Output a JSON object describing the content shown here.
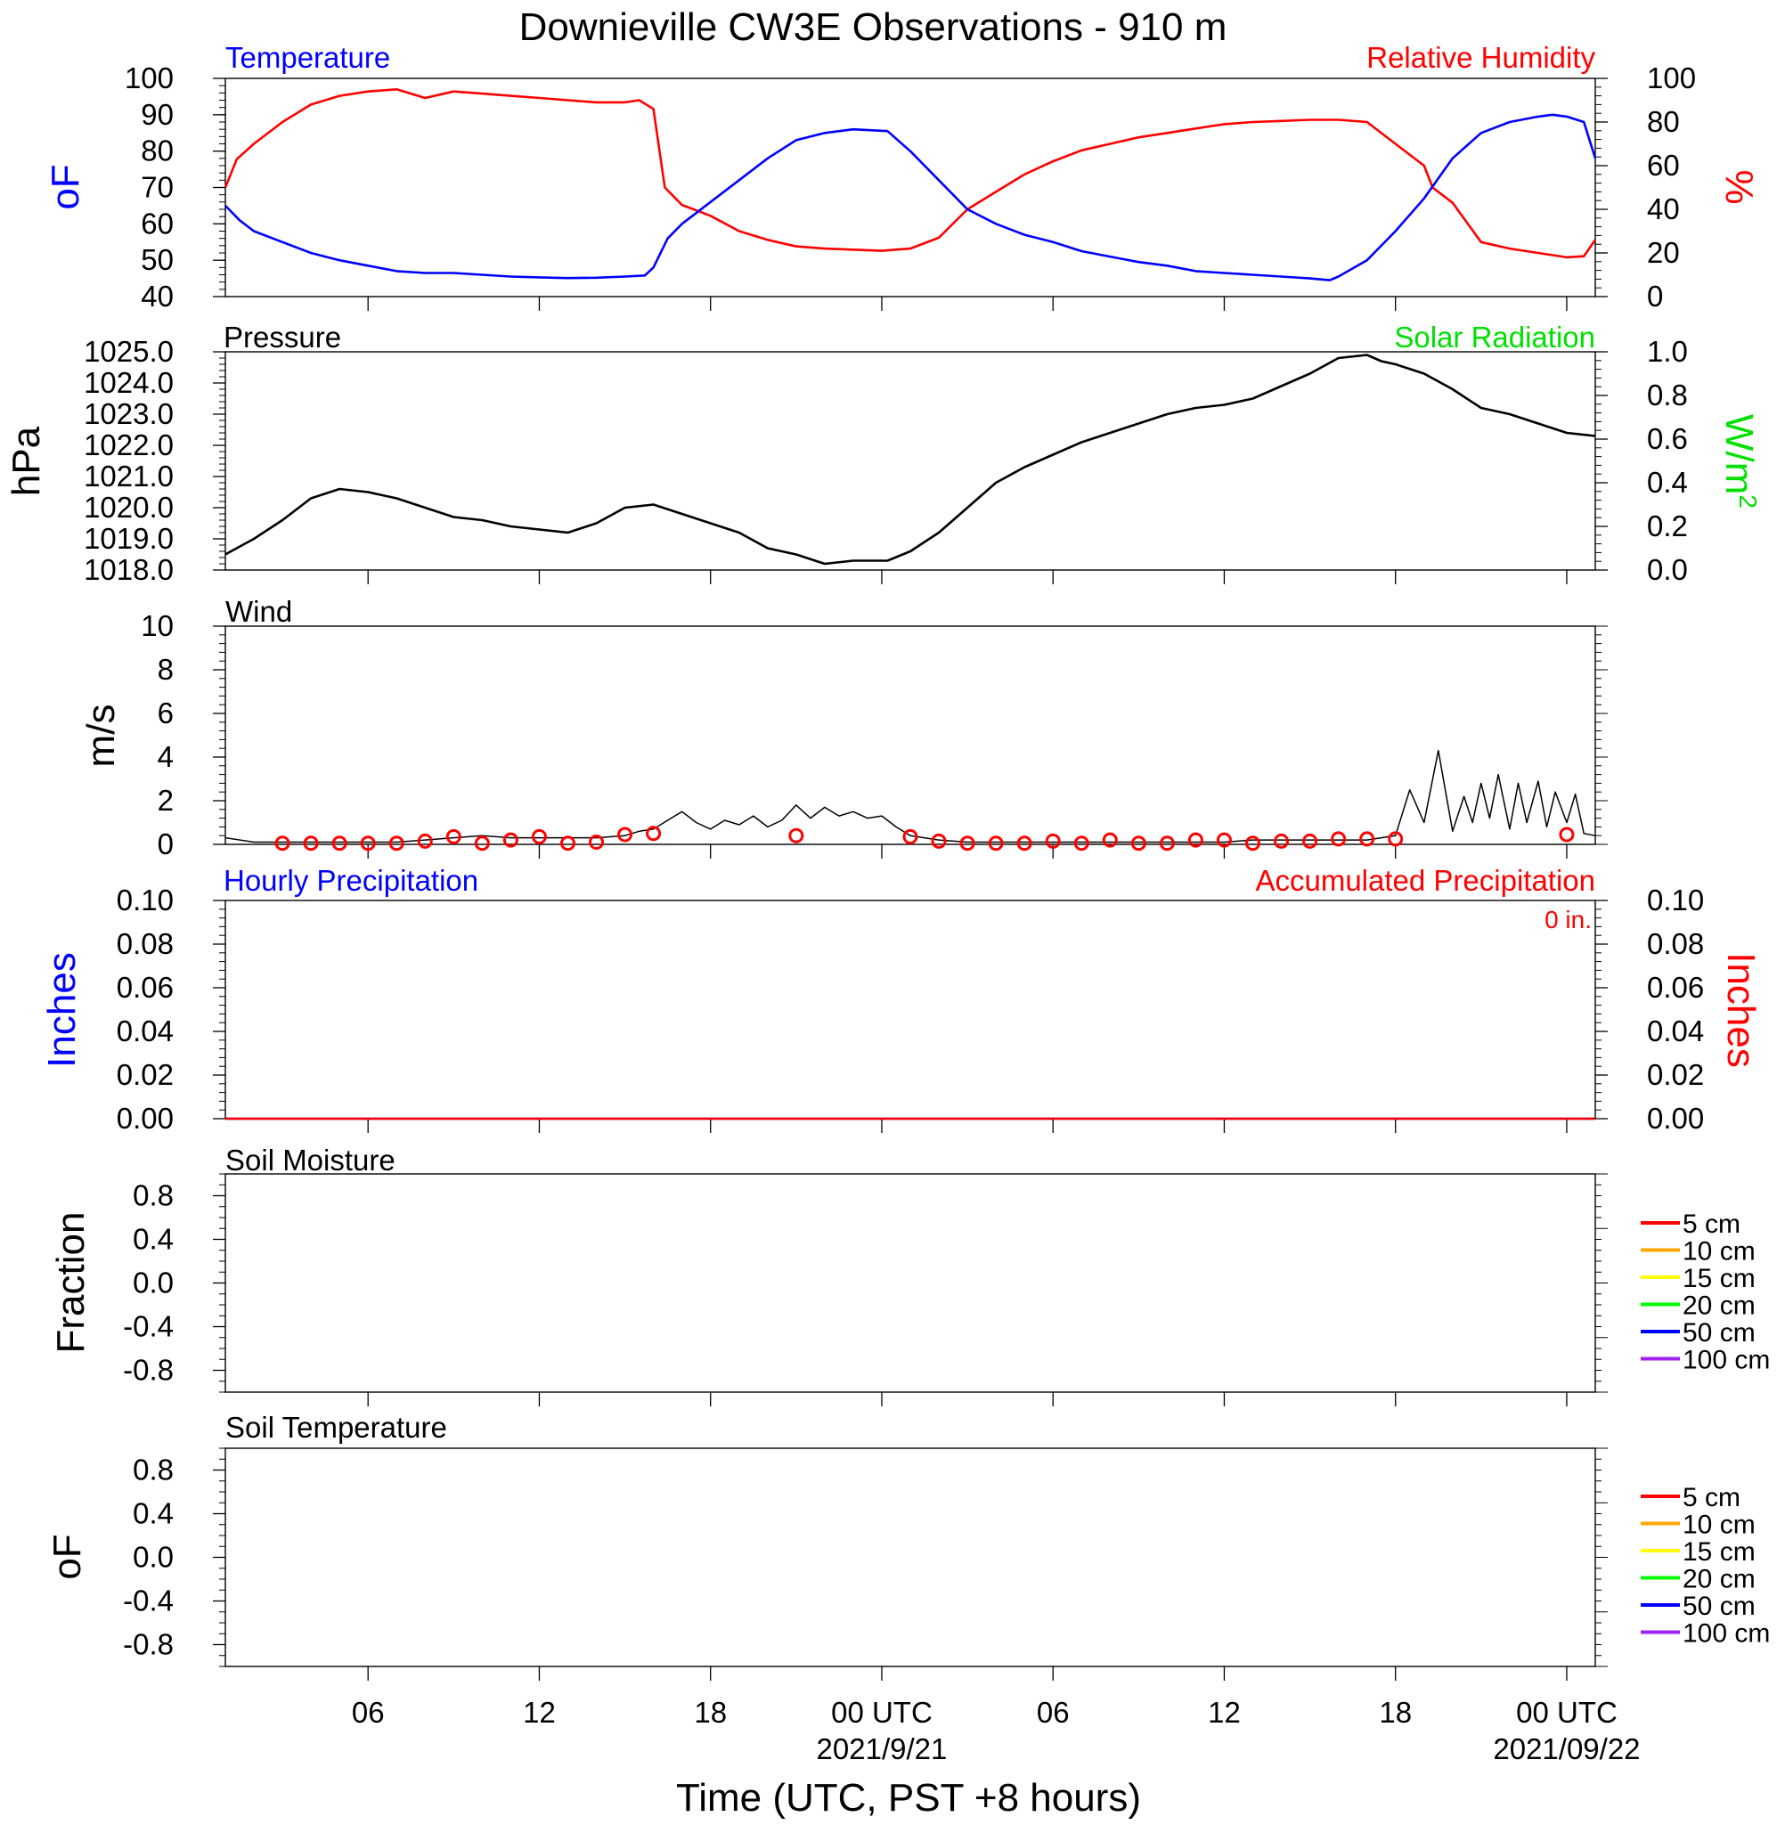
{
  "title": "Downieville CW3E Observations - 910 m",
  "xlabel": "Time (UTC, PST +8 hours)",
  "colors": {
    "temperature": "#0000ff",
    "humidity": "#ff0000",
    "pressure": "#000000",
    "solar": "#00e000",
    "wind": "#000000",
    "gust": "#ff0000",
    "hourly_precip": "#0000ff",
    "accum_precip": "#ff0000"
  },
  "x_ticks": [
    {
      "label": "06",
      "date": ""
    },
    {
      "label": "12",
      "date": ""
    },
    {
      "label": "18",
      "date": ""
    },
    {
      "label": "00 UTC",
      "date": "2021/9/21"
    },
    {
      "label": "06",
      "date": ""
    },
    {
      "label": "12",
      "date": ""
    },
    {
      "label": "18",
      "date": ""
    },
    {
      "label": "00 UTC",
      "date": "2021/09/22"
    }
  ],
  "panels": {
    "temp_rh": {
      "left_title": "Temperature",
      "right_title": "Relative Humidity",
      "left_unit": "oF",
      "right_unit": "%",
      "left_ticks": [
        "100",
        "90",
        "80",
        "70",
        "60",
        "50",
        "40"
      ],
      "right_ticks": [
        "100",
        "80",
        "60",
        "40",
        "20",
        "0"
      ]
    },
    "pressure": {
      "left_title": "Pressure",
      "right_title": "Solar Radiation",
      "left_unit": "hPa",
      "right_unit": "W/m2",
      "left_ticks": [
        "1025.0",
        "1024.0",
        "1023.0",
        "1022.0",
        "1021.0",
        "1020.0",
        "1019.0",
        "1018.0"
      ],
      "right_ticks": [
        "1.0",
        "0.8",
        "0.6",
        "0.4",
        "0.2",
        "0.0"
      ]
    },
    "wind": {
      "left_title": "Wind",
      "left_unit": "m/s",
      "left_ticks": [
        "10",
        "8",
        "6",
        "4",
        "2",
        "0"
      ]
    },
    "precip": {
      "left_title": "Hourly Precipitation",
      "right_title": "Accumulated Precipitation",
      "total_label": "0 in.",
      "left_unit": "Inches",
      "right_unit": "Inches",
      "left_ticks": [
        "0.10",
        "0.08",
        "0.06",
        "0.04",
        "0.02",
        "0.00"
      ],
      "right_ticks": [
        "0.10",
        "0.08",
        "0.06",
        "0.04",
        "0.02",
        "0.00"
      ]
    },
    "soil_moisture": {
      "left_title": "Soil Moisture",
      "left_unit": "Fraction",
      "left_ticks": [
        "0.8",
        "0.4",
        "0.0",
        "-0.4",
        "-0.8"
      ]
    },
    "soil_temp": {
      "left_title": "Soil Temperature",
      "left_unit": "oF",
      "left_ticks": [
        "0.8",
        "0.4",
        "0.0",
        "-0.4",
        "-0.8"
      ]
    }
  },
  "soil_legend": [
    {
      "label": "5 cm",
      "color": "#ff0000"
    },
    {
      "label": "10 cm",
      "color": "#ffa500"
    },
    {
      "label": "15 cm",
      "color": "#ffff00"
    },
    {
      "label": "20 cm",
      "color": "#00ff00"
    },
    {
      "label": "50 cm",
      "color": "#0000ff"
    },
    {
      "label": "100 cm",
      "color": "#a020f0"
    }
  ],
  "chart_data": [
    {
      "type": "line",
      "title": "Temperature / Relative Humidity",
      "x_unit": "hours since 2021-09-20 00 UTC",
      "xlim": [
        1,
        49
      ],
      "series": [
        {
          "name": "Temperature",
          "axis": "left",
          "ylim": [
            40,
            100
          ],
          "x": [
            1,
            1.5,
            2,
            3,
            4,
            5,
            6,
            7,
            8,
            9,
            10,
            11,
            12,
            13,
            14,
            15,
            15.7,
            16,
            16.5,
            17,
            18,
            19,
            20,
            21,
            22,
            23,
            24.2,
            25,
            26,
            27,
            28,
            29,
            30,
            31,
            32,
            33,
            34,
            35,
            36,
            37,
            38,
            39,
            39.7,
            40,
            41,
            42,
            43,
            44,
            45,
            46,
            47,
            47.5,
            48,
            48.6,
            49
          ],
          "values": [
            65,
            61,
            58,
            55,
            52,
            50,
            48.5,
            47,
            46.5,
            46.5,
            46,
            45.5,
            45.3,
            45.1,
            45.2,
            45.5,
            45.8,
            48,
            56,
            60,
            66,
            72,
            78,
            83,
            85,
            86,
            85.5,
            80,
            72,
            64,
            60,
            57,
            55,
            52.5,
            51,
            49.5,
            48.5,
            47,
            46.5,
            46,
            45.5,
            45,
            44.5,
            45.5,
            50,
            58,
            67,
            78,
            85,
            88,
            89.5,
            90,
            89.5,
            88,
            78
          ]
        },
        {
          "name": "Relative Humidity",
          "axis": "right",
          "ylim": [
            0,
            100
          ],
          "x": [
            1,
            1.4,
            2,
            3,
            4,
            5,
            6,
            7,
            8,
            9,
            10,
            11,
            12,
            13,
            14,
            15,
            15.5,
            16,
            16.4,
            17,
            18,
            19,
            20,
            21,
            22,
            23,
            24,
            25,
            26,
            27,
            28,
            29,
            30,
            31,
            32,
            33,
            34,
            35,
            36,
            37,
            38,
            39,
            40,
            41,
            42,
            43,
            43.3,
            44,
            45,
            46,
            47,
            48,
            48.6,
            49
          ],
          "values": [
            50,
            63,
            70,
            80,
            88,
            92,
            94,
            95,
            91,
            94,
            93,
            92,
            91,
            90,
            89,
            89,
            90,
            86,
            50,
            42,
            37,
            30,
            26,
            23,
            22,
            21.5,
            21,
            22,
            27,
            40,
            48,
            56,
            62,
            67,
            70,
            73,
            75,
            77,
            79,
            80,
            80.5,
            81,
            81,
            80,
            70,
            60,
            50,
            43,
            25,
            22,
            20,
            18,
            18.5,
            26
          ]
        }
      ]
    },
    {
      "type": "line",
      "title": "Pressure",
      "x_unit": "hours since 2021-09-20 00 UTC",
      "xlim": [
        1,
        49
      ],
      "series": [
        {
          "name": "Pressure",
          "axis": "left",
          "ylim": [
            1018,
            1025
          ],
          "x": [
            1,
            2,
            3,
            4,
            5,
            6,
            7,
            8,
            9,
            10,
            11,
            12,
            13,
            14,
            15,
            16,
            17,
            18,
            19,
            20,
            21,
            22,
            23,
            24.2,
            25,
            26,
            27,
            28,
            29,
            30,
            31,
            32,
            33,
            34,
            35,
            36,
            37,
            38,
            39,
            40,
            41,
            41.5,
            42,
            43,
            44,
            45,
            46,
            47,
            48,
            49
          ],
          "values": [
            1018.5,
            1019.0,
            1019.6,
            1020.3,
            1020.6,
            1020.5,
            1020.3,
            1020.0,
            1019.7,
            1019.6,
            1019.4,
            1019.3,
            1019.2,
            1019.5,
            1020.0,
            1020.1,
            1019.8,
            1019.5,
            1019.2,
            1018.7,
            1018.5,
            1018.2,
            1018.3,
            1018.3,
            1018.6,
            1019.2,
            1020.0,
            1020.8,
            1021.3,
            1021.7,
            1022.1,
            1022.4,
            1022.7,
            1023.0,
            1023.2,
            1023.3,
            1023.5,
            1023.9,
            1024.3,
            1024.8,
            1024.9,
            1024.7,
            1024.6,
            1024.3,
            1023.8,
            1023.2,
            1023.0,
            1022.7,
            1022.4,
            1022.3
          ]
        },
        {
          "name": "Solar Radiation",
          "axis": "right",
          "ylim": [
            0,
            1.0
          ],
          "x": [],
          "values": []
        }
      ]
    },
    {
      "type": "line",
      "title": "Wind",
      "x_unit": "hours since 2021-09-20 00 UTC",
      "xlim": [
        1,
        49
      ],
      "ylim": [
        0,
        10
      ],
      "series": [
        {
          "name": "Wind",
          "x": [
            1,
            2,
            3,
            4,
            5,
            6,
            7,
            8,
            9,
            10,
            11,
            12,
            13,
            14,
            15,
            15.5,
            16,
            16.5,
            17,
            17.5,
            18,
            18.5,
            19,
            19.5,
            20,
            20.5,
            21,
            21.5,
            22,
            22.5,
            23,
            23.5,
            24,
            24.5,
            25,
            26,
            27,
            28,
            29,
            30,
            31,
            32,
            33,
            34,
            35,
            36,
            37,
            38,
            39,
            40,
            41,
            41.5,
            42,
            42.5,
            43,
            43.5,
            44,
            44.4,
            44.7,
            45,
            45.3,
            45.6,
            46,
            46.3,
            46.6,
            47,
            47.3,
            47.6,
            48,
            48.3,
            48.6,
            49
          ],
          "values": [
            0.3,
            0.1,
            0.1,
            0.1,
            0.1,
            0.1,
            0.1,
            0.2,
            0.3,
            0.4,
            0.3,
            0.3,
            0.3,
            0.3,
            0.4,
            0.6,
            0.7,
            1.1,
            1.5,
            1.0,
            0.7,
            1.1,
            0.9,
            1.3,
            0.8,
            1.1,
            1.8,
            1.2,
            1.7,
            1.3,
            1.5,
            1.2,
            1.3,
            0.8,
            0.4,
            0.2,
            0.1,
            0.1,
            0.1,
            0.1,
            0.1,
            0.1,
            0.1,
            0.1,
            0.1,
            0.1,
            0.2,
            0.2,
            0.2,
            0.2,
            0.2,
            0.3,
            0.4,
            2.5,
            1.0,
            4.3,
            0.6,
            2.2,
            1.0,
            2.8,
            1.2,
            3.2,
            0.7,
            2.8,
            1.0,
            2.9,
            0.8,
            2.4,
            1.0,
            2.3,
            0.5,
            0.4
          ]
        },
        {
          "name": "Gust",
          "x": [
            3,
            4,
            5,
            6,
            7,
            8,
            9,
            10,
            11,
            12,
            13,
            14,
            15,
            16,
            21,
            25,
            26,
            27,
            28,
            29,
            30,
            31,
            32,
            33,
            34,
            35,
            36,
            37,
            38,
            39,
            40,
            41,
            42,
            48
          ],
          "values": [
            0.05,
            0.05,
            0.05,
            0.05,
            0.05,
            0.15,
            0.35,
            0.05,
            0.2,
            0.35,
            0.05,
            0.1,
            0.45,
            0.5,
            0.4,
            0.35,
            0.15,
            0.05,
            0.05,
            0.05,
            0.15,
            0.05,
            0.2,
            0.05,
            0.05,
            0.2,
            0.2,
            0.05,
            0.15,
            0.15,
            0.25,
            0.25,
            0.25,
            0.45
          ]
        }
      ]
    },
    {
      "type": "line",
      "title": "Precipitation",
      "x_unit": "hours since 2021-09-20 00 UTC",
      "xlim": [
        1,
        49
      ],
      "ylim": [
        0,
        0.1
      ],
      "series": [
        {
          "name": "Hourly Precipitation",
          "x": [
            1,
            49
          ],
          "values": [
            0,
            0
          ]
        },
        {
          "name": "Accumulated Precipitation",
          "x": [
            1,
            49
          ],
          "values": [
            0,
            0
          ]
        }
      ]
    },
    {
      "type": "line",
      "title": "Soil Moisture",
      "ylim": [
        -1,
        1
      ],
      "series": []
    },
    {
      "type": "line",
      "title": "Soil Temperature",
      "ylim": [
        -1,
        1
      ],
      "series": []
    }
  ]
}
